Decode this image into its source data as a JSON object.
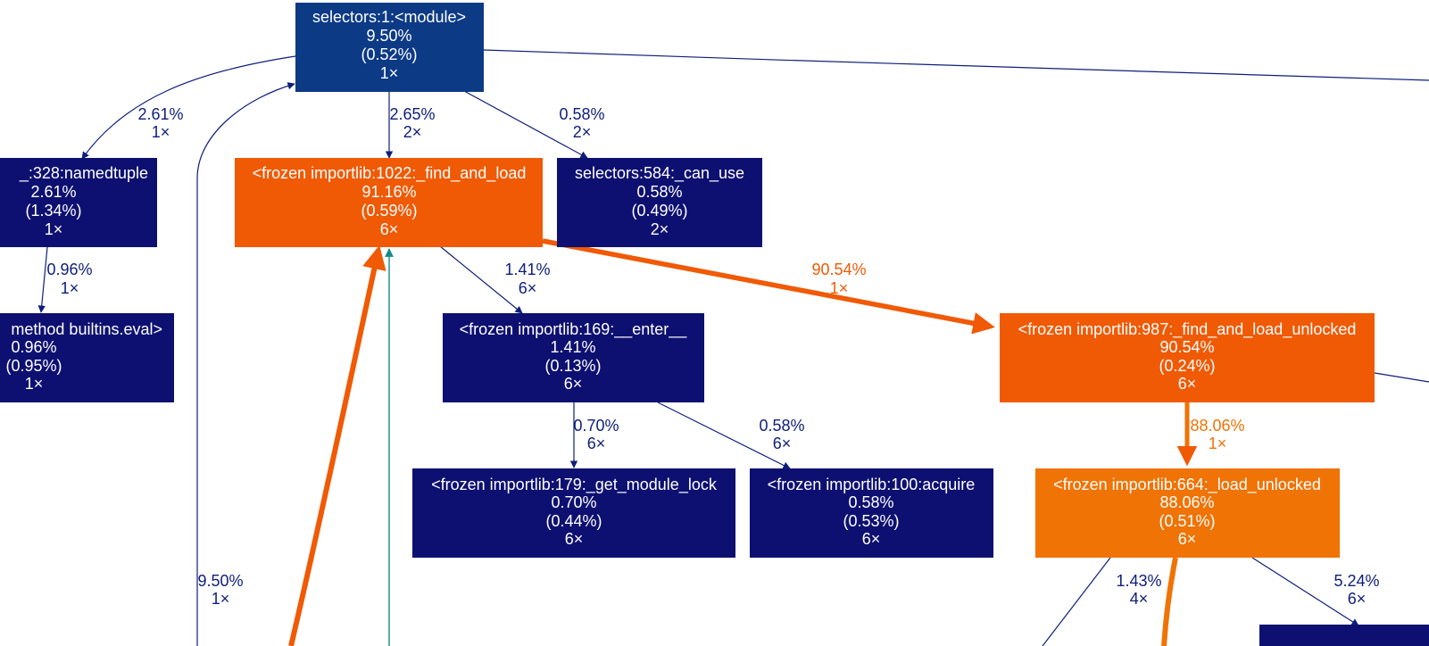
{
  "colors": {
    "background": "#ffffff",
    "edge_default": "#0d1e7a",
    "edge_hot": "#f05a05",
    "edge_teal": "#138a8a",
    "node_dark": "#0d1070",
    "node_blue": "#0c3a85",
    "node_orange_hot": "#f05a05",
    "node_orange": "#f07305",
    "text_on_node": "#ffffff"
  },
  "nodes": {
    "selectors_module": {
      "lines": [
        "selectors:1:<module>",
        "9.50%",
        "(0.52%)",
        "1×"
      ],
      "color": "#0c3a85"
    },
    "namedtuple": {
      "lines": [
        "_:328:namedtuple",
        "2.61%",
        "(1.34%)",
        "1×"
      ],
      "color": "#0d1070"
    },
    "find_and_load": {
      "lines": [
        "<frozen importlib:1022:_find_and_load",
        "91.16%",
        "(0.59%)",
        "6×"
      ],
      "color": "#f05a05"
    },
    "can_use": {
      "lines": [
        "selectors:584:_can_use",
        "0.58%",
        "(0.49%)",
        "2×"
      ],
      "color": "#0d1070"
    },
    "builtins_eval": {
      "lines": [
        "method builtins.eval>",
        "0.96%",
        "(0.95%)",
        "1×"
      ],
      "color": "#0d1070"
    },
    "enter": {
      "lines": [
        "<frozen importlib:169:__enter__",
        "1.41%",
        "(0.13%)",
        "6×"
      ],
      "color": "#0d1070"
    },
    "find_and_load_unlocked": {
      "lines": [
        "<frozen importlib:987:_find_and_load_unlocked",
        "90.54%",
        "(0.24%)",
        "6×"
      ],
      "color": "#f05a05"
    },
    "get_module_lock": {
      "lines": [
        "<frozen importlib:179:_get_module_lock",
        "0.70%",
        "(0.44%)",
        "6×"
      ],
      "color": "#0d1070"
    },
    "acquire": {
      "lines": [
        "<frozen importlib:100:acquire",
        "0.58%",
        "(0.53%)",
        "6×"
      ],
      "color": "#0d1070"
    },
    "load_unlocked": {
      "lines": [
        "<frozen importlib:664:_load_unlocked",
        "88.06%",
        "(0.51%)",
        "6×"
      ],
      "color": "#f07305"
    }
  },
  "edges": {
    "module_to_namedtuple": {
      "pct": "2.61%",
      "count": "1×"
    },
    "module_to_find_and_load": {
      "pct": "2.65%",
      "count": "2×"
    },
    "module_to_can_use": {
      "pct": "0.58%",
      "count": "2×"
    },
    "namedtuple_to_eval": {
      "pct": "0.96%",
      "count": "1×"
    },
    "find_and_load_to_enter": {
      "pct": "1.41%",
      "count": "6×"
    },
    "find_and_load_to_unlocked": {
      "pct": "90.54%",
      "count": "1×"
    },
    "enter_to_get_module_lock": {
      "pct": "0.70%",
      "count": "6×"
    },
    "enter_to_acquire": {
      "pct": "0.58%",
      "count": "6×"
    },
    "unlocked_to_load_unlocked": {
      "pct": "88.06%",
      "count": "1×"
    },
    "loop_to_module": {
      "pct": "9.50%",
      "count": "1×"
    },
    "load_unlocked_left": {
      "pct": "1.43%",
      "count": "4×"
    },
    "load_unlocked_right": {
      "pct": "5.24%",
      "count": "6×"
    }
  }
}
